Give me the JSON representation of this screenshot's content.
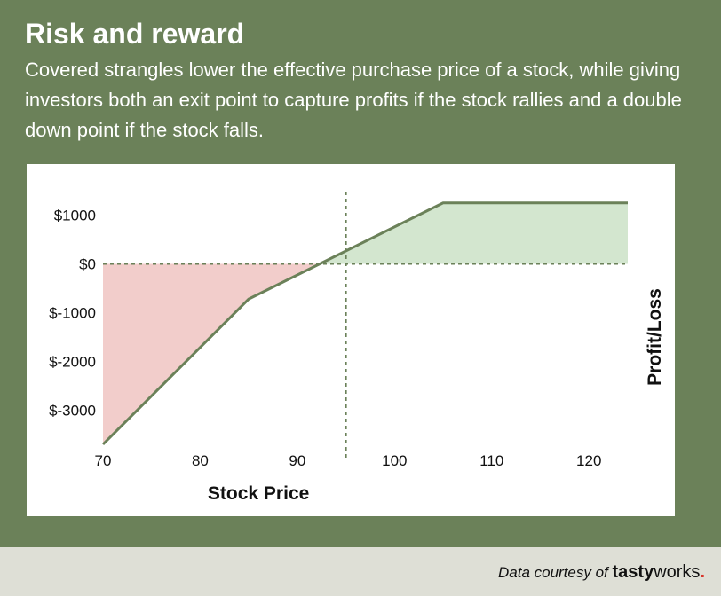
{
  "title": "Risk and reward",
  "subtitle": "Covered strangles lower the effective purchase price of a stock, while giving investors both an exit point to capture profits if the stock rallies and a double down point if the stock falls.",
  "footer": {
    "credit_label": "Data courtesy of",
    "brand_a": "tasty",
    "brand_b": "works",
    "brand_dot": "."
  },
  "colors": {
    "background": "#6b8159",
    "line": "#6b8159",
    "loss_fill": "#f2cdcb",
    "profit_fill": "#d3e6cf",
    "footer_bg": "#dedfd6",
    "brand_dot": "#d9352b"
  },
  "chart_data": {
    "type": "area",
    "xlabel": "Stock Price",
    "ylabel": "Profit/Loss",
    "xlim": [
      70,
      124
    ],
    "ylim": [
      -3700,
      1300
    ],
    "x_ticks": [
      70,
      80,
      90,
      100,
      110,
      120
    ],
    "y_ticks": [
      1000,
      0,
      -1000,
      -2000,
      -3000
    ],
    "y_tick_labels": [
      "$1000",
      "$0",
      "$-1000",
      "$-2000",
      "$-3000"
    ],
    "grid": false,
    "series": [
      {
        "x": [
          70,
          85,
          105,
          124
        ],
        "y": [
          -3700,
          -720,
          1250,
          1250
        ]
      }
    ],
    "reference_lines": [
      {
        "orientation": "horizontal",
        "value": 0,
        "style": "dashed"
      },
      {
        "orientation": "vertical",
        "value": 95,
        "style": "dashed"
      }
    ]
  }
}
